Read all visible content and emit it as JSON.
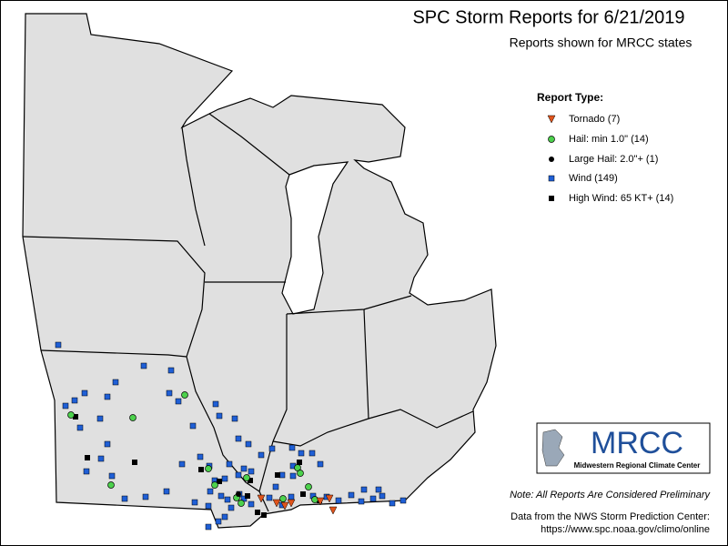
{
  "header": {
    "title": "SPC Storm Reports for 6/21/2019",
    "subtitle": "Reports shown for MRCC states"
  },
  "legend": {
    "title": "Report Type:",
    "items": [
      "Tornado (7)",
      "Hail: min 1.0\" (14)",
      "Large Hail: 2.0\"+ (1)",
      "Wind (149)",
      "High Wind: 65 KT+ (14)"
    ]
  },
  "logo": {
    "name": "MRCC",
    "full_name": "Midwestern Regional Climate Center"
  },
  "footer": {
    "note": "Note: All Reports Are Considered Preliminary",
    "source": "Data from the NWS Storm Prediction Center:",
    "url": "https://www.spc.noaa.gov/climo/online"
  }
}
